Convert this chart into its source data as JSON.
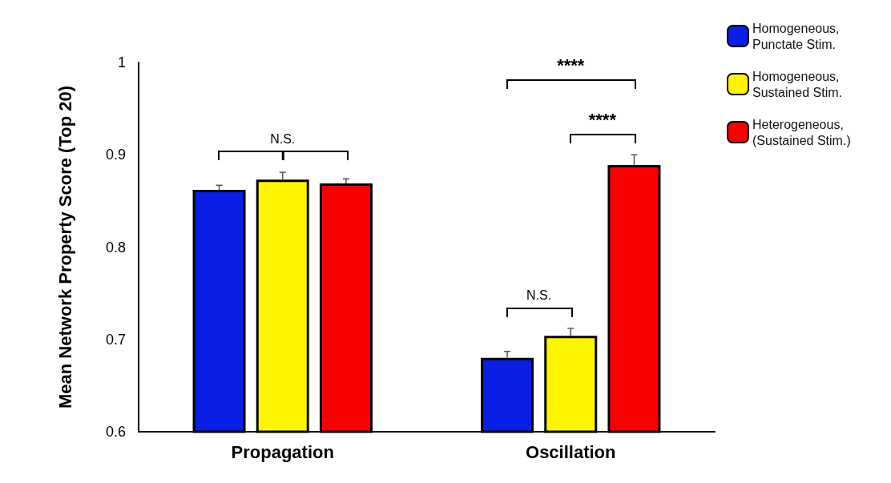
{
  "chart_data": {
    "type": "bar",
    "ylabel": "Mean Network Property Score (Top 20)",
    "categories": [
      "Propagation",
      "Oscillation"
    ],
    "series": [
      {
        "name": "Homogeneous, Punctate Stim.",
        "color": "#0a1ee6",
        "values": [
          0.862,
          0.68
        ],
        "errors": [
          [
            0.862,
            0.867
          ],
          [
            0.68,
            0.687
          ]
        ]
      },
      {
        "name": "Homogeneous, Sustained Stim.",
        "color": "#fff500",
        "values": [
          0.873,
          0.704
        ],
        "errors": [
          [
            0.873,
            0.881
          ],
          [
            0.704,
            0.712
          ]
        ]
      },
      {
        "name": "Heterogeneous, (Sustained Stim.)",
        "color": "#fb0000",
        "values": [
          0.869,
          0.889
        ],
        "errors": [
          [
            0.869,
            0.874
          ],
          [
            0.889,
            0.9
          ]
        ]
      }
    ],
    "ylim": [
      0.6,
      1
    ],
    "yticks": [
      0.6,
      0.7,
      0.8,
      0.9,
      1
    ],
    "grid": false,
    "legend": "top right",
    "annotations": [
      "N.S.",
      "****",
      "****",
      "N.S."
    ]
  }
}
